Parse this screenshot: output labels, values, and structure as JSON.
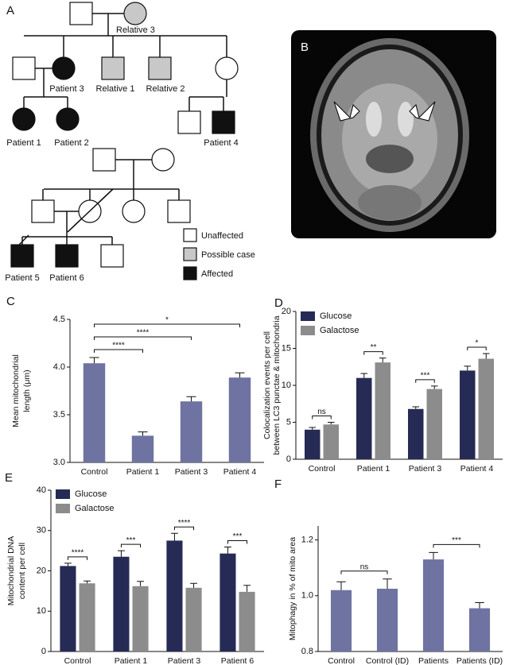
{
  "panels": [
    "A",
    "B",
    "C",
    "D",
    "E",
    "F"
  ],
  "pedigree": {
    "labels": [
      "Relative 3",
      "Patient 3",
      "Relative 1",
      "Relative 2",
      "Patient 1",
      "Patient 2",
      "Patient 4",
      "Patient 5",
      "Patient 6"
    ],
    "legend": [
      "Unaffected",
      "Possible case",
      "Affected"
    ]
  },
  "chart_data": [
    {
      "type": "bar",
      "ylabel": [
        "Mean mitochondrial",
        "length (μm)"
      ],
      "categories": [
        "Control",
        "Patient 1",
        "Patient 3",
        "Patient 4"
      ],
      "values": [
        4.04,
        3.28,
        3.64,
        3.89
      ],
      "errors": [
        0.06,
        0.04,
        0.05,
        0.05
      ],
      "color": "#6f73a1",
      "ylim": [
        3.0,
        4.5
      ],
      "yticks": [
        {
          "value": 3,
          "label": "3.0"
        },
        {
          "value": 3.5,
          "label": "3.5"
        },
        {
          "value": 4,
          "label": "4.0"
        },
        {
          "value": 4.5,
          "label": "4.5"
        }
      ],
      "annotations": [
        {
          "label": "****",
          "between": [
            "Control",
            "Patient 1"
          ]
        },
        {
          "label": "****",
          "between": [
            "Control",
            "Patient 3"
          ]
        },
        {
          "label": "*",
          "between": [
            "Control",
            "Patient 4"
          ]
        }
      ]
    },
    {
      "type": "bar",
      "ylabel": [
        "Colocalization events per cell",
        "between LC3 punctae & mitochondria"
      ],
      "categories": [
        "Control",
        "Patient 1",
        "Patient 3",
        "Patient 4"
      ],
      "series": [
        {
          "name": "Glucose",
          "color": "#262b55",
          "values": [
            4.0,
            11.0,
            6.8,
            12.0
          ],
          "errors": [
            0.3,
            0.6,
            0.3,
            0.6
          ]
        },
        {
          "name": "Galactose",
          "color": "#8c8c8c",
          "values": [
            4.7,
            13.1,
            9.5,
            13.6
          ],
          "errors": [
            0.3,
            0.6,
            0.4,
            0.7
          ]
        }
      ],
      "ylim": [
        0,
        20
      ],
      "yticks": [
        0,
        5,
        10,
        15,
        20
      ],
      "annotations": [
        {
          "label": "ns",
          "category": "Control"
        },
        {
          "label": "**",
          "category": "Patient 1"
        },
        {
          "label": "***",
          "category": "Patient 3"
        },
        {
          "label": "*",
          "category": "Patient 4"
        }
      ]
    },
    {
      "type": "bar",
      "ylabel": [
        "Mitochondrial DNA",
        "content per cell"
      ],
      "categories": [
        "Control",
        "Patient 1",
        "Patient 3",
        "Patient 6"
      ],
      "series": [
        {
          "name": "Glucose",
          "color": "#262b55",
          "values": [
            21.2,
            23.5,
            27.5,
            24.3
          ],
          "errors": [
            0.7,
            1.5,
            1.8,
            1.6
          ]
        },
        {
          "name": "Galactose",
          "color": "#8c8c8c",
          "values": [
            16.9,
            16.2,
            15.8,
            14.8
          ],
          "errors": [
            0.6,
            1.2,
            1.1,
            1.6
          ]
        }
      ],
      "ylim": [
        0,
        40
      ],
      "yticks": [
        0,
        10,
        20,
        30,
        40
      ],
      "annotations": [
        {
          "label": "****",
          "category": "Control"
        },
        {
          "label": "***",
          "category": "Patient 1"
        },
        {
          "label": "****",
          "category": "Patient 3"
        },
        {
          "label": "***",
          "category": "Patient 6"
        }
      ]
    },
    {
      "type": "bar",
      "ylabel": [
        "Mitophagy in % of mito area"
      ],
      "categories": [
        "Control",
        "Control (ID)",
        "Patients",
        "Patients (ID)"
      ],
      "values": [
        1.02,
        1.025,
        1.13,
        0.955
      ],
      "errors": [
        0.03,
        0.035,
        0.025,
        0.02
      ],
      "color": "#6f73a1",
      "ylim": [
        0.8,
        1.25
      ],
      "yticks": [
        0.8,
        {
          "value": 1,
          "label": "1.0"
        },
        1.2
      ],
      "annotations": [
        {
          "label": "ns",
          "between": [
            "Control",
            "Control (ID)"
          ]
        },
        {
          "label": "***",
          "between": [
            "Patients",
            "Patients (ID)"
          ]
        }
      ]
    }
  ]
}
